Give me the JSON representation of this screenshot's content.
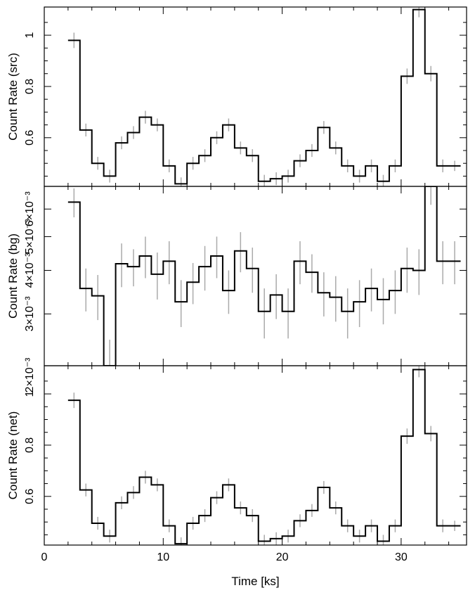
{
  "chart_data": [
    {
      "type": "line",
      "panel": "top",
      "ylabel": "Count Rate (src)",
      "ylim": [
        0.41,
        1.11
      ],
      "yticks": [
        {
          "v": 0.6,
          "label": "0.6"
        },
        {
          "v": 0.8,
          "label": "0.8"
        },
        {
          "v": 1.0,
          "label": "1"
        }
      ],
      "xlim": [
        0,
        35.5
      ],
      "series": [
        {
          "step": "mid",
          "x": [
            2.5,
            3.5,
            4.5,
            5.5,
            6.5,
            7.5,
            8.5,
            9.5,
            10.5,
            11.5,
            12.5,
            13.5,
            14.5,
            15.5,
            16.5,
            17.5,
            18.5,
            19.5,
            20.5,
            21.5,
            22.5,
            23.5,
            24.5,
            25.5,
            26.5,
            27.5,
            28.5,
            29.5,
            30.5,
            31.5,
            32.5,
            33.5,
            34.5
          ],
          "y": [
            0.98,
            0.63,
            0.5,
            0.45,
            0.58,
            0.62,
            0.68,
            0.65,
            0.49,
            0.42,
            0.5,
            0.53,
            0.6,
            0.65,
            0.56,
            0.53,
            0.43,
            0.44,
            0.45,
            0.51,
            0.55,
            0.64,
            0.56,
            0.49,
            0.45,
            0.49,
            0.43,
            0.49,
            0.84,
            1.1,
            0.85,
            0.49,
            0.49
          ],
          "err": [
            0.03,
            0.025,
            0.025,
            0.025,
            0.025,
            0.025,
            0.025,
            0.025,
            0.025,
            0.025,
            0.025,
            0.025,
            0.025,
            0.025,
            0.025,
            0.025,
            0.025,
            0.025,
            0.025,
            0.025,
            0.025,
            0.025,
            0.025,
            0.025,
            0.025,
            0.025,
            0.025,
            0.025,
            0.03,
            0.03,
            0.03,
            0.025,
            0.02
          ]
        }
      ]
    },
    {
      "type": "line",
      "panel": "middle",
      "ylabel": "Count Rate (bg)",
      "yscale": "log",
      "ylim": [
        0.00213,
        0.00697
      ],
      "yticks": [
        {
          "v": 0.002,
          "label": "2×10⁻³"
        },
        {
          "v": 0.003,
          "label": "3×10⁻³"
        },
        {
          "v": 0.004,
          "label": "4×10⁻³"
        },
        {
          "v": 0.005,
          "label": "5×10⁻³"
        },
        {
          "v": 0.006,
          "label": "6×10⁻³"
        }
      ],
      "xlim": [
        0,
        35.5
      ],
      "series": [
        {
          "step": "mid",
          "x": [
            2.5,
            3.5,
            4.5,
            5.5,
            6.5,
            7.5,
            8.5,
            9.5,
            10.5,
            11.5,
            12.5,
            13.5,
            14.5,
            15.5,
            16.5,
            17.5,
            18.5,
            19.5,
            20.5,
            21.5,
            22.5,
            23.5,
            24.5,
            25.5,
            26.5,
            27.5,
            28.5,
            29.5,
            30.5,
            31.5,
            32.5,
            33.5,
            34.5
          ],
          "y": [
            0.00628,
            0.00355,
            0.00338,
            0.00213,
            0.00418,
            0.0041,
            0.0044,
            0.0039,
            0.00425,
            0.00325,
            0.0037,
            0.0041,
            0.0044,
            0.0035,
            0.00455,
            0.00405,
            0.00305,
            0.0034,
            0.00305,
            0.00425,
            0.00395,
            0.00345,
            0.00335,
            0.00305,
            0.00325,
            0.00355,
            0.0033,
            0.0035,
            0.00405,
            0.004,
            0.00697,
            0.00425,
            0.00425
          ],
          "err": [
            0.0006,
            0.0005,
            0.0005,
            0.0004,
            0.0006,
            0.0005,
            0.0006,
            0.0006,
            0.0006,
            0.0005,
            0.0005,
            0.0006,
            0.0006,
            0.0005,
            0.0006,
            0.0006,
            0.0005,
            0.0005,
            0.0005,
            0.0006,
            0.0005,
            0.0005,
            0.0005,
            0.0005,
            0.0005,
            0.0005,
            0.0005,
            0.0005,
            0.0006,
            0.0006,
            0.0008,
            0.0006,
            0.0006
          ]
        }
      ]
    },
    {
      "type": "line",
      "panel": "bottom",
      "ylabel": "Count Rate (net)",
      "xlabel": "Time [ks]",
      "ylim": [
        0.41,
        1.11
      ],
      "yticks": [
        {
          "v": 0.6,
          "label": "0.6"
        },
        {
          "v": 0.8,
          "label": "0.8"
        },
        {
          "v": 1.0,
          "label": "1"
        }
      ],
      "xlim": [
        0,
        35.5
      ],
      "xticks": [
        {
          "v": 0,
          "label": "0"
        },
        {
          "v": 10,
          "label": "10"
        },
        {
          "v": 20,
          "label": "20"
        },
        {
          "v": 30,
          "label": "30"
        }
      ],
      "series": [
        {
          "step": "mid",
          "x": [
            2.5,
            3.5,
            4.5,
            5.5,
            6.5,
            7.5,
            8.5,
            9.5,
            10.5,
            11.5,
            12.5,
            13.5,
            14.5,
            15.5,
            16.5,
            17.5,
            18.5,
            19.5,
            20.5,
            21.5,
            22.5,
            23.5,
            24.5,
            25.5,
            26.5,
            27.5,
            28.5,
            29.5,
            30.5,
            31.5,
            32.5,
            33.5,
            34.5
          ],
          "y": [
            0.975,
            0.625,
            0.495,
            0.445,
            0.575,
            0.615,
            0.675,
            0.645,
            0.485,
            0.415,
            0.495,
            0.525,
            0.595,
            0.645,
            0.555,
            0.525,
            0.425,
            0.435,
            0.445,
            0.505,
            0.545,
            0.635,
            0.555,
            0.485,
            0.445,
            0.485,
            0.425,
            0.485,
            0.835,
            1.095,
            0.845,
            0.485,
            0.485
          ],
          "err": [
            0.03,
            0.025,
            0.025,
            0.025,
            0.025,
            0.025,
            0.025,
            0.025,
            0.025,
            0.025,
            0.025,
            0.025,
            0.025,
            0.025,
            0.025,
            0.025,
            0.025,
            0.025,
            0.025,
            0.025,
            0.025,
            0.025,
            0.025,
            0.025,
            0.025,
            0.025,
            0.025,
            0.025,
            0.03,
            0.03,
            0.03,
            0.025,
            0.02
          ]
        }
      ]
    }
  ],
  "colors": {
    "step_line": "#000000",
    "error_bar": "#aaaaaa",
    "frame": "#000000"
  }
}
